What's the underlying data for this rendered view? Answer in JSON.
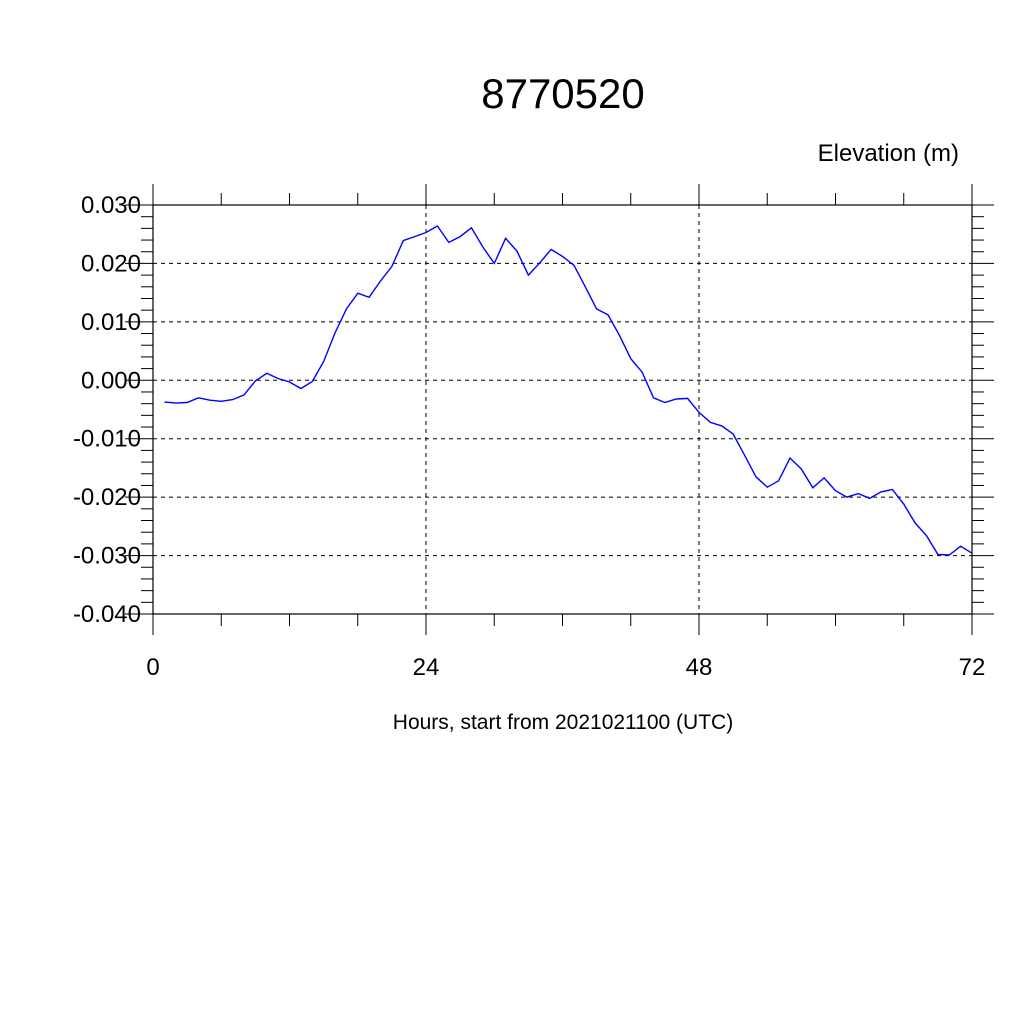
{
  "chart_data": {
    "type": "line",
    "title": "8770520",
    "ylabel": "Elevation (m)",
    "xlabel": "Hours, start from 2021021100 (UTC)",
    "xlim": [
      0,
      72
    ],
    "ylim": [
      -0.04,
      0.03
    ],
    "x_ticks": [
      0,
      24,
      48,
      72
    ],
    "x_tick_labels": [
      "0",
      "24",
      "48",
      "72"
    ],
    "y_ticks": [
      0.03,
      0.02,
      0.01,
      0.0,
      -0.01,
      -0.02,
      -0.03,
      -0.04
    ],
    "y_tick_labels": [
      "0.030",
      "0.020",
      "0.010",
      "0.000",
      "-0.010",
      "-0.020",
      "-0.030",
      "-0.040"
    ],
    "grid": true,
    "line_color": "#0000ff",
    "series": [
      {
        "x": [
          1,
          2,
          3,
          4,
          5,
          6,
          7,
          8,
          9,
          10,
          11,
          12,
          13,
          14,
          15,
          16,
          17,
          18,
          19,
          20,
          21,
          22,
          23,
          24,
          25,
          26,
          27,
          28,
          29,
          30,
          31,
          32,
          33,
          34,
          35,
          36,
          37,
          38,
          39,
          40,
          41,
          42,
          43,
          44,
          45,
          46,
          47,
          48,
          49,
          50,
          51,
          52,
          53,
          54,
          55,
          56,
          57,
          58,
          59,
          60,
          61,
          62,
          63,
          64,
          65,
          66,
          67,
          68,
          69,
          70,
          71,
          72
        ],
        "values": [
          -0.0037,
          -0.0039,
          -0.0038,
          -0.003,
          -0.0034,
          -0.0036,
          -0.0033,
          -0.0025,
          -0.0001,
          0.0012,
          0.0003,
          -0.0003,
          -0.0014,
          -0.0002,
          0.0032,
          0.0081,
          0.0122,
          0.0149,
          0.0142,
          0.017,
          0.0195,
          0.0239,
          0.0246,
          0.0253,
          0.0264,
          0.0236,
          0.0246,
          0.0261,
          0.0228,
          0.02,
          0.0243,
          0.0221,
          0.018,
          0.0201,
          0.0224,
          0.0212,
          0.0197,
          0.016,
          0.0122,
          0.0112,
          0.0077,
          0.0037,
          0.0014,
          -0.003,
          -0.0038,
          -0.0032,
          -0.0031,
          -0.0055,
          -0.0072,
          -0.0078,
          -0.0092,
          -0.0128,
          -0.0165,
          -0.0183,
          -0.0172,
          -0.0133,
          -0.0152,
          -0.0184,
          -0.0167,
          -0.0189,
          -0.02,
          -0.0194,
          -0.0202,
          -0.0191,
          -0.0187,
          -0.0212,
          -0.0244,
          -0.0266,
          -0.0298,
          -0.0299,
          -0.0284,
          -0.0296
        ]
      }
    ]
  }
}
